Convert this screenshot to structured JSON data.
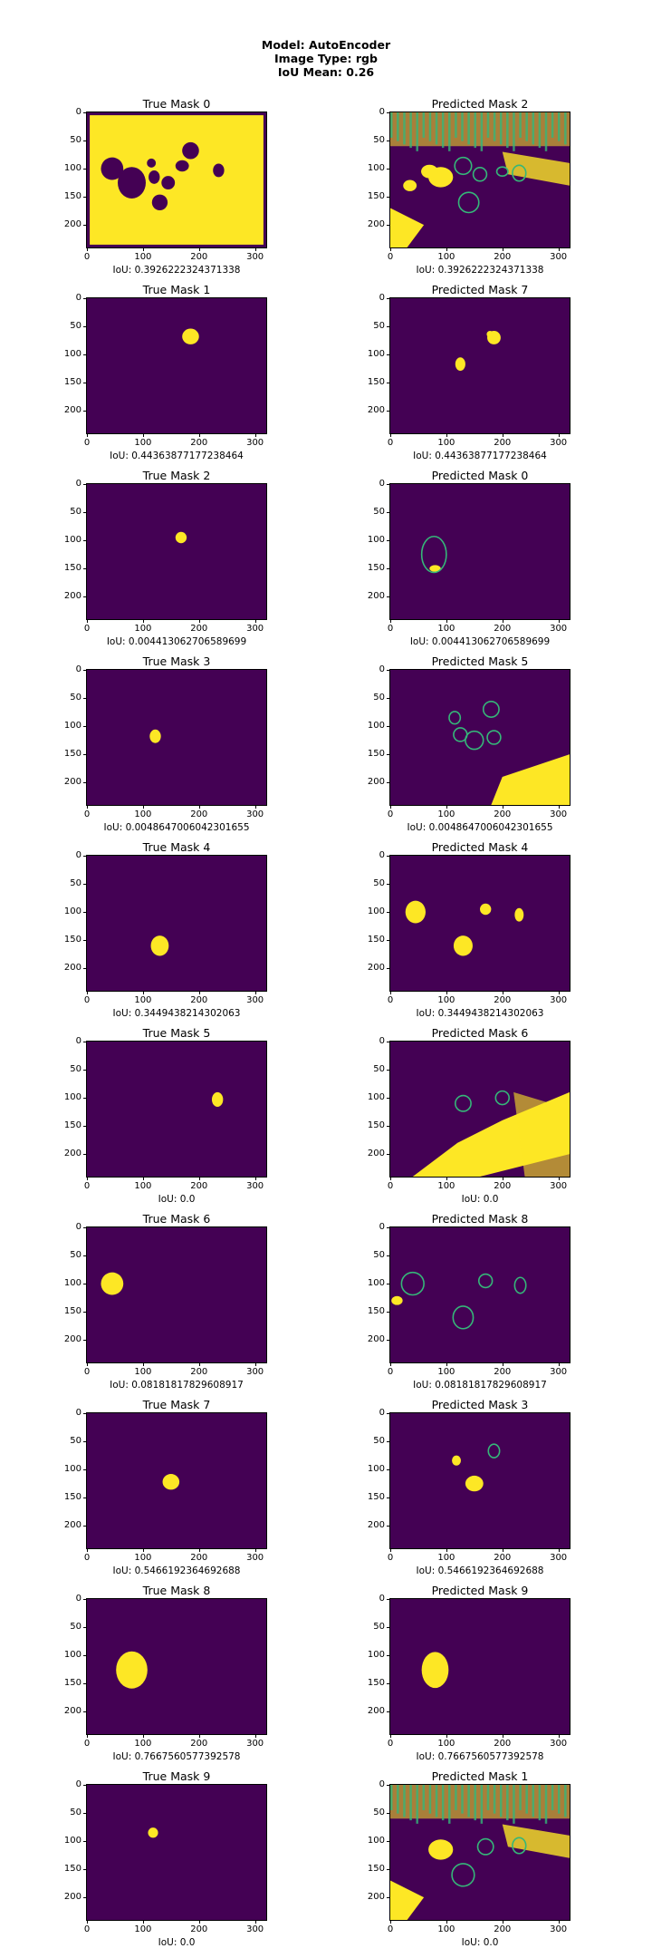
{
  "figure": {
    "title_lines": [
      "Model: AutoEncoder",
      "Image Type: rgb",
      "IoU Mean: 0.26"
    ]
  },
  "colors": {
    "background": "#440154",
    "foreground": "#fde725",
    "edge": "#35b779"
  },
  "axes": {
    "x_ticks": [
      "0",
      "100",
      "200",
      "300"
    ],
    "x_tick_values": [
      0,
      100,
      200,
      300
    ],
    "x_range": [
      0,
      320
    ],
    "y_ticks": [
      "0",
      "50",
      "100",
      "150",
      "200"
    ],
    "y_tick_values": [
      0,
      50,
      100,
      150,
      200
    ],
    "y_range": [
      240,
      0
    ]
  },
  "chart_data": {
    "type": "heatmap",
    "rows": [
      {
        "true_title": "True Mask 0",
        "pred_title": "Predicted Mask 2",
        "iou_label": "IoU: 0.3926222324371338",
        "true_kind": "inverted",
        "true_blobs": [
          [
            45,
            100,
            20,
            20
          ],
          [
            80,
            125,
            25,
            28
          ],
          [
            115,
            90,
            8,
            8
          ],
          [
            120,
            115,
            10,
            12
          ],
          [
            145,
            125,
            12,
            12
          ],
          [
            170,
            95,
            12,
            10
          ],
          [
            185,
            68,
            15,
            15
          ],
          [
            130,
            160,
            14,
            14
          ],
          [
            235,
            103,
            10,
            12
          ]
        ],
        "pred_kind": "noisy_top",
        "pred_blobs": [
          [
            90,
            115,
            22,
            18
          ],
          [
            70,
            105,
            15,
            12
          ],
          [
            35,
            130,
            12,
            10
          ]
        ],
        "pred_rings": [
          [
            130,
            95,
            15,
            15
          ],
          [
            140,
            160,
            18,
            18
          ],
          [
            160,
            110,
            12,
            12
          ],
          [
            230,
            108,
            12,
            14
          ],
          [
            200,
            105,
            10,
            8
          ]
        ]
      },
      {
        "true_title": "True Mask 1",
        "pred_title": "Predicted Mask 7",
        "iou_label": "IoU: 0.44363877177238464",
        "true_kind": "blobs",
        "true_blobs": [
          [
            185,
            68,
            15,
            14
          ]
        ],
        "pred_kind": "blobs",
        "pred_blobs": [
          [
            185,
            70,
            12,
            12
          ],
          [
            125,
            117,
            9,
            12
          ],
          [
            178,
            64,
            6,
            6
          ]
        ],
        "pred_rings": []
      },
      {
        "true_title": "True Mask 2",
        "pred_title": "Predicted Mask 0",
        "iou_label": "IoU: 0.004413062706589699",
        "true_kind": "blobs",
        "true_blobs": [
          [
            168,
            95,
            10,
            10
          ]
        ],
        "pred_kind": "blobs",
        "pred_blobs": [
          [
            80,
            150,
            10,
            6
          ]
        ],
        "pred_rings": [
          [
            78,
            125,
            22,
            32
          ]
        ]
      },
      {
        "true_title": "True Mask 3",
        "pred_title": "Predicted Mask 5",
        "iou_label": "IoU: 0.0048647006042301655",
        "true_kind": "blobs",
        "true_blobs": [
          [
            122,
            118,
            10,
            12
          ]
        ],
        "pred_kind": "bottom_right",
        "pred_blobs": [],
        "pred_rings": [
          [
            115,
            85,
            10,
            11
          ],
          [
            150,
            125,
            16,
            16
          ],
          [
            180,
            70,
            14,
            14
          ],
          [
            125,
            115,
            12,
            12
          ],
          [
            185,
            120,
            12,
            12
          ]
        ]
      },
      {
        "true_title": "True Mask 4",
        "pred_title": "Predicted Mask 4",
        "iou_label": "IoU: 0.3449438214302063",
        "true_kind": "blobs",
        "true_blobs": [
          [
            130,
            160,
            16,
            18
          ]
        ],
        "pred_kind": "blobs",
        "pred_blobs": [
          [
            45,
            100,
            18,
            20
          ],
          [
            130,
            160,
            17,
            18
          ],
          [
            170,
            95,
            10,
            10
          ],
          [
            230,
            105,
            8,
            12
          ]
        ],
        "pred_rings": []
      },
      {
        "true_title": "True Mask 5",
        "pred_title": "Predicted Mask 6",
        "iou_label": "IoU: 0.0",
        "true_kind": "blobs",
        "true_blobs": [
          [
            233,
            103,
            10,
            13
          ]
        ],
        "pred_kind": "diagonal",
        "pred_blobs": [],
        "pred_rings": [
          [
            130,
            110,
            14,
            14
          ],
          [
            200,
            100,
            12,
            12
          ]
        ]
      },
      {
        "true_title": "True Mask 6",
        "pred_title": "Predicted Mask 8",
        "iou_label": "IoU: 0.08181817829608917",
        "true_kind": "blobs",
        "true_blobs": [
          [
            45,
            100,
            20,
            20
          ]
        ],
        "pred_kind": "blobs",
        "pred_blobs": [
          [
            12,
            130,
            10,
            8
          ]
        ],
        "pred_rings": [
          [
            40,
            100,
            20,
            20
          ],
          [
            130,
            160,
            18,
            20
          ],
          [
            170,
            95,
            12,
            12
          ],
          [
            232,
            103,
            10,
            14
          ]
        ]
      },
      {
        "true_title": "True Mask 7",
        "pred_title": "Predicted Mask 3",
        "iou_label": "IoU: 0.5466192364692688",
        "true_kind": "blobs",
        "true_blobs": [
          [
            150,
            122,
            15,
            14
          ]
        ],
        "pred_kind": "blobs",
        "pred_blobs": [
          [
            150,
            125,
            16,
            14
          ],
          [
            118,
            84,
            8,
            9
          ]
        ],
        "pred_rings": [
          [
            185,
            67,
            10,
            12
          ]
        ]
      },
      {
        "true_title": "True Mask 8",
        "pred_title": "Predicted Mask 9",
        "iou_label": "IoU: 0.7667560577392578",
        "true_kind": "blobs",
        "true_blobs": [
          [
            80,
            126,
            28,
            33
          ]
        ],
        "pred_kind": "blobs",
        "pred_blobs": [
          [
            80,
            126,
            24,
            32
          ]
        ],
        "pred_rings": []
      },
      {
        "true_title": "True Mask 9",
        "pred_title": "Predicted Mask 1",
        "iou_label": "IoU: 0.0",
        "true_kind": "blobs",
        "true_blobs": [
          [
            118,
            85,
            9,
            9
          ]
        ],
        "pred_kind": "noisy_top",
        "pred_blobs": [
          [
            90,
            115,
            22,
            18
          ]
        ],
        "pred_rings": [
          [
            130,
            160,
            20,
            20
          ],
          [
            170,
            110,
            14,
            14
          ],
          [
            230,
            108,
            12,
            14
          ]
        ]
      }
    ]
  }
}
